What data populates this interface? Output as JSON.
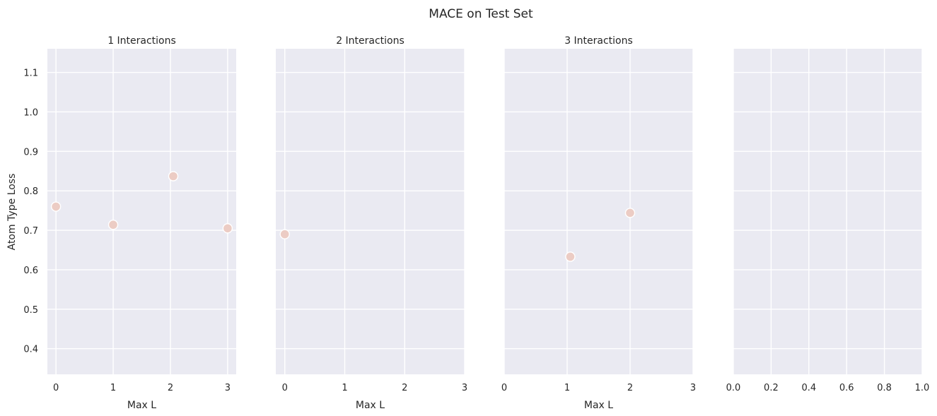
{
  "figure": {
    "title": "MACE on Test Set",
    "ylabel": "Atom Type Loss",
    "point_color": "#ecccc4",
    "background_color": "#eaeaf2"
  },
  "chart_data": [
    {
      "type": "scatter",
      "title": "1 Interactions",
      "xlabel": "Max L",
      "ylabel": "Atom Type Loss",
      "xlim": [
        -0.15,
        3.15
      ],
      "ylim": [
        0.335,
        1.16
      ],
      "xticks": [
        0,
        1,
        2,
        3
      ],
      "yticks": [
        0.4,
        0.5,
        0.6,
        0.7,
        0.8,
        0.9,
        1.0,
        1.1
      ],
      "grid": true,
      "points": [
        {
          "x": 0,
          "y": 0.76
        },
        {
          "x": 1,
          "y": 0.714
        },
        {
          "x": 2.05,
          "y": 0.837
        },
        {
          "x": 3,
          "y": 0.705
        }
      ]
    },
    {
      "type": "scatter",
      "title": "2 Interactions",
      "xlabel": "Max L",
      "xlim": [
        -0.15,
        3
      ],
      "ylim": [
        0.335,
        1.16
      ],
      "xticks": [
        0,
        1,
        2,
        3
      ],
      "yticks": [
        0.4,
        0.5,
        0.6,
        0.7,
        0.8,
        0.9,
        1.0,
        1.1
      ],
      "grid": true,
      "points": [
        {
          "x": 0,
          "y": 0.69
        }
      ]
    },
    {
      "type": "scatter",
      "title": "3 Interactions",
      "xlabel": "Max L",
      "xlim": [
        0,
        3
      ],
      "ylim": [
        0.335,
        1.16
      ],
      "xticks": [
        0,
        1,
        2,
        3
      ],
      "yticks": [
        0.4,
        0.5,
        0.6,
        0.7,
        0.8,
        0.9,
        1.0,
        1.1
      ],
      "grid": true,
      "points": [
        {
          "x": 1.05,
          "y": 0.633
        },
        {
          "x": 2,
          "y": 0.744
        }
      ]
    },
    {
      "type": "scatter",
      "title": "",
      "xlabel": "",
      "xlim": [
        0,
        1
      ],
      "ylim": [
        0.335,
        1.16
      ],
      "xticks": [
        0.0,
        0.2,
        0.4,
        0.6,
        0.8,
        1.0
      ],
      "xtick_labels": [
        "0.0",
        "0.2",
        "0.4",
        "0.6",
        "0.8",
        "1.0"
      ],
      "yticks": [
        0.4,
        0.5,
        0.6,
        0.7,
        0.8,
        0.9,
        1.0,
        1.1
      ],
      "grid": true,
      "points": []
    }
  ]
}
